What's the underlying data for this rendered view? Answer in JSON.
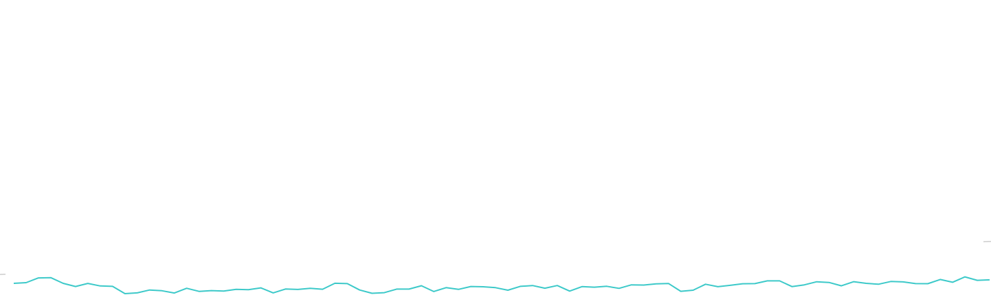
{
  "chart_data": {
    "type": "line",
    "title": "",
    "xlabel": "",
    "ylabel": "",
    "grid": false,
    "legend": "none",
    "xlim": [
      0,
      99
    ],
    "ylim": [
      0,
      100
    ],
    "series": [
      {
        "color": "#3cc9c9",
        "values": [
          14.6,
          15.5,
          22.2,
          22.6,
          14.6,
          10.1,
          14.5,
          10.9,
          10.3,
          0,
          1.1,
          5.1,
          4.1,
          0.9,
          7.6,
          3.2,
          4.3,
          3.6,
          6.1,
          5.5,
          8.2,
          1.1,
          6.5,
          5.9,
          7.5,
          6.2,
          14.7,
          14.2,
          5.1,
          0.5,
          1.4,
          6.4,
          6.4,
          11.2,
          3.0,
          8.4,
          6.0,
          10.1,
          9.7,
          8.4,
          4.9,
          10.3,
          11.5,
          7.7,
          11.5,
          3.6,
          9.9,
          9.1,
          10.4,
          7.5,
          12.4,
          12.1,
          13.9,
          14.4,
          3.3,
          4.9,
          13.3,
          9.8,
          11.7,
          14.0,
          14.2,
          18.1,
          18.1,
          10.0,
          12.4,
          16.8,
          15.8,
          11.1,
          16.9,
          14.6,
          13.3,
          17.2,
          16.6,
          14.2,
          14.1,
          20.0,
          16.1,
          23.7,
          18.8,
          19.5
        ]
      }
    ],
    "reference_line": {
      "color": "#cccccc",
      "values": [
        5.5,
        15.5
      ]
    }
  }
}
